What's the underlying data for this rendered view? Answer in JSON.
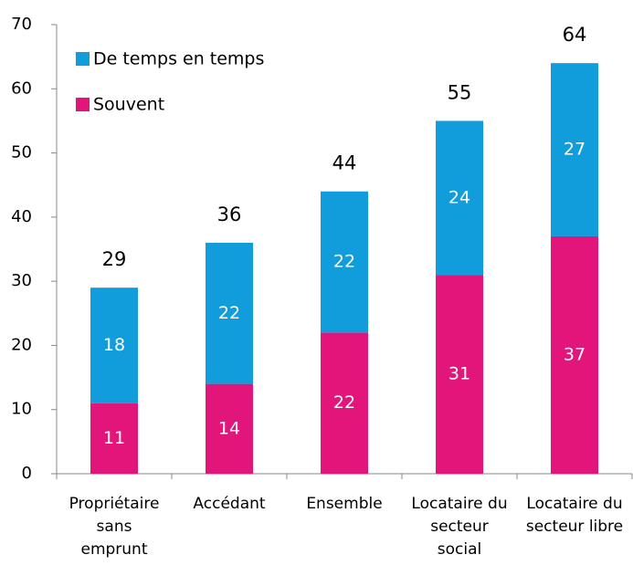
{
  "chart_data": {
    "type": "stacked_bar",
    "categories": [
      [
        "Propriétaire",
        "sans",
        "emprunt"
      ],
      [
        "Accédant"
      ],
      [
        "Ensemble"
      ],
      [
        "Locataire du",
        "secteur",
        "social"
      ],
      [
        "Locataire du",
        "secteur libre"
      ]
    ],
    "series": [
      {
        "name": "Souvent",
        "color": "#e2157b",
        "values": [
          11,
          14,
          22,
          31,
          37
        ]
      },
      {
        "name": "De temps en temps",
        "color": "#119ddb",
        "values": [
          18,
          22,
          22,
          24,
          27
        ]
      }
    ],
    "totals": [
      29,
      36,
      44,
      55,
      64
    ],
    "ylim": [
      0,
      70
    ],
    "yticks": [
      0,
      10,
      20,
      30,
      40,
      50,
      60,
      70
    ],
    "grid": false,
    "legend": "upper left"
  }
}
